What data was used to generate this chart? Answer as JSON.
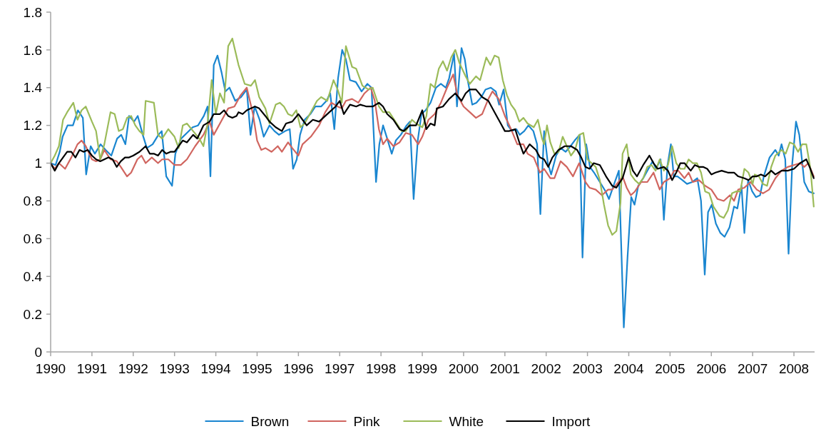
{
  "chart_data": {
    "type": "line",
    "xlim": [
      1990,
      2008.5
    ],
    "xticks": [
      1990,
      1991,
      1992,
      1993,
      1994,
      1995,
      1996,
      1997,
      1998,
      1999,
      2000,
      2001,
      2002,
      2003,
      2004,
      2005,
      2006,
      2007,
      2008
    ],
    "ylim": [
      0,
      1.8
    ],
    "yticks": [
      0,
      0.2,
      0.4,
      0.6,
      0.8,
      1,
      1.2,
      1.4,
      1.6,
      1.8
    ],
    "legend": "bottom",
    "series": [
      {
        "name": "Brown",
        "color": "#1a86d0",
        "x": [
          1990.0,
          1990.12,
          1990.22,
          1990.29,
          1990.41,
          1990.54,
          1990.66,
          1990.78,
          1990.86,
          1990.97,
          1991.07,
          1991.21,
          1991.33,
          1991.47,
          1991.61,
          1991.71,
          1991.81,
          1991.9,
          1992.02,
          1992.11,
          1992.23,
          1992.33,
          1992.47,
          1992.61,
          1992.69,
          1992.8,
          1992.94,
          1993.02,
          1993.16,
          1993.3,
          1993.44,
          1993.57,
          1993.71,
          1993.8,
          1993.87,
          1993.95,
          1994.04,
          1994.14,
          1994.23,
          1994.33,
          1994.47,
          1994.61,
          1994.75,
          1994.84,
          1994.94,
          1995.06,
          1995.16,
          1995.3,
          1995.42,
          1995.53,
          1995.68,
          1995.79,
          1995.87,
          1995.96,
          1996.04,
          1996.15,
          1996.29,
          1996.41,
          1996.55,
          1996.68,
          1996.77,
          1996.87,
          1996.96,
          1997.06,
          1997.15,
          1997.25,
          1997.39,
          1997.53,
          1997.67,
          1997.77,
          1997.88,
          1997.96,
          1998.05,
          1998.15,
          1998.26,
          1998.36,
          1998.48,
          1998.62,
          1998.7,
          1998.79,
          1998.89,
          1998.98,
          1999.08,
          1999.2,
          1999.33,
          1999.45,
          1999.57,
          1999.65,
          1999.77,
          1999.84,
          1999.95,
          2000.03,
          2000.1,
          2000.21,
          2000.31,
          2000.43,
          2000.53,
          2000.66,
          2000.78,
          2000.86,
          2000.97,
          2001.07,
          2001.17,
          2001.28,
          2001.36,
          2001.47,
          2001.57,
          2001.69,
          2001.78,
          2001.86,
          2001.95,
          2002.04,
          2002.12,
          2002.24,
          2002.35,
          2002.47,
          2002.59,
          2002.69,
          2002.81,
          2002.88,
          2002.97,
          2003.06,
          2003.16,
          2003.3,
          2003.44,
          2003.52,
          2003.63,
          2003.76,
          2003.88,
          2003.97,
          2004.06,
          2004.14,
          2004.23,
          2004.35,
          2004.45,
          2004.58,
          2004.66,
          2004.77,
          2004.85,
          2004.94,
          2005.02,
          2005.09,
          2005.18,
          2005.3,
          2005.41,
          2005.54,
          2005.66,
          2005.75,
          2005.84,
          2005.92,
          2006.01,
          2006.11,
          2006.22,
          2006.32,
          2006.44,
          2006.55,
          2006.63,
          2006.73,
          2006.8,
          2006.89,
          2006.99,
          2007.08,
          2007.18,
          2007.27,
          2007.41,
          2007.55,
          2007.63,
          2007.7,
          2007.79,
          2007.87,
          2007.96,
          2008.05,
          2008.13,
          2008.25,
          2008.36,
          2008.48
        ],
        "values": [
          1.0,
          0.99,
          1.06,
          1.14,
          1.2,
          1.2,
          1.28,
          1.24,
          0.94,
          1.09,
          1.05,
          1.1,
          1.07,
          1.04,
          1.13,
          1.15,
          1.1,
          1.25,
          1.22,
          1.25,
          1.15,
          1.08,
          1.1,
          1.15,
          1.17,
          0.93,
          0.88,
          1.05,
          1.13,
          1.16,
          1.19,
          1.2,
          1.25,
          1.3,
          0.93,
          1.52,
          1.57,
          1.48,
          1.38,
          1.4,
          1.33,
          1.35,
          1.39,
          1.15,
          1.3,
          1.23,
          1.14,
          1.2,
          1.17,
          1.15,
          1.17,
          1.18,
          0.97,
          1.02,
          1.15,
          1.23,
          1.26,
          1.3,
          1.3,
          1.33,
          1.37,
          1.18,
          1.45,
          1.6,
          1.55,
          1.44,
          1.43,
          1.38,
          1.42,
          1.4,
          0.9,
          1.1,
          1.2,
          1.13,
          1.05,
          1.12,
          1.15,
          1.2,
          1.22,
          0.81,
          1.12,
          1.26,
          1.28,
          1.32,
          1.4,
          1.42,
          1.4,
          1.45,
          1.58,
          1.3,
          1.61,
          1.55,
          1.44,
          1.31,
          1.32,
          1.35,
          1.39,
          1.4,
          1.38,
          1.31,
          1.39,
          1.2,
          1.17,
          1.18,
          1.15,
          1.17,
          1.2,
          1.17,
          1.1,
          0.73,
          1.17,
          1.0,
          0.94,
          1.04,
          1.08,
          1.06,
          1.09,
          1.12,
          1.15,
          0.5,
          1.1,
          0.98,
          0.95,
          0.9,
          0.85,
          0.81,
          0.88,
          0.96,
          0.13,
          0.5,
          0.82,
          0.78,
          0.88,
          0.92,
          0.96,
          1.01,
          0.97,
          1.02,
          0.7,
          0.99,
          1.1,
          0.93,
          0.93,
          0.91,
          0.89,
          0.9,
          0.92,
          0.8,
          0.41,
          0.74,
          0.78,
          0.68,
          0.63,
          0.61,
          0.66,
          0.77,
          0.76,
          0.88,
          0.63,
          0.91,
          0.85,
          0.82,
          0.83,
          0.93,
          1.03,
          1.07,
          1.04,
          1.1,
          1.02,
          0.52,
          1.0,
          1.22,
          1.15,
          0.9,
          0.85,
          0.84
        ]
      },
      {
        "name": "Pink",
        "color": "#d0655f",
        "x": [
          1990.0,
          1990.1,
          1990.2,
          1990.35,
          1990.5,
          1990.65,
          1990.75,
          1990.85,
          1991.0,
          1991.1,
          1991.2,
          1991.3,
          1991.45,
          1991.6,
          1991.7,
          1991.85,
          1991.95,
          1992.1,
          1992.2,
          1992.3,
          1992.45,
          1992.6,
          1992.7,
          1992.85,
          1993.0,
          1993.15,
          1993.3,
          1993.5,
          1993.7,
          1993.85,
          1993.95,
          1994.15,
          1994.3,
          1994.45,
          1994.6,
          1994.75,
          1994.9,
          1995.0,
          1995.1,
          1995.2,
          1995.35,
          1995.5,
          1995.6,
          1995.75,
          1995.85,
          1996.0,
          1996.1,
          1996.3,
          1996.5,
          1996.65,
          1996.8,
          1996.95,
          1997.05,
          1997.15,
          1997.3,
          1997.45,
          1997.6,
          1997.75,
          1997.85,
          1997.95,
          1998.05,
          1998.15,
          1998.3,
          1998.45,
          1998.6,
          1998.75,
          1998.9,
          1999.0,
          1999.15,
          1999.3,
          1999.45,
          1999.6,
          1999.75,
          1999.85,
          2000.0,
          2000.15,
          2000.3,
          2000.45,
          2000.6,
          2000.7,
          2000.85,
          2001.0,
          2001.15,
          2001.3,
          2001.45,
          2001.55,
          2001.7,
          2001.85,
          2001.95,
          2002.1,
          2002.2,
          2002.35,
          2002.5,
          2002.65,
          2002.8,
          2002.95,
          2003.05,
          2003.2,
          2003.35,
          2003.5,
          2003.6,
          2003.75,
          2003.85,
          2003.95,
          2004.05,
          2004.15,
          2004.3,
          2004.45,
          2004.6,
          2004.75,
          2004.85,
          2005.0,
          2005.1,
          2005.2,
          2005.35,
          2005.45,
          2005.55,
          2005.7,
          2005.85,
          2006.0,
          2006.15,
          2006.3,
          2006.45,
          2006.55,
          2006.65,
          2006.8,
          2006.95,
          2007.1,
          2007.25,
          2007.4,
          2007.55,
          2007.7,
          2007.85,
          2008.0,
          2008.15,
          2008.25,
          2008.35,
          2008.48
        ],
        "values": [
          1.0,
          0.97,
          1.0,
          0.97,
          1.03,
          1.1,
          1.12,
          1.09,
          1.02,
          1.01,
          1.02,
          1.07,
          1.02,
          1.01,
          0.98,
          0.93,
          0.95,
          1.02,
          1.04,
          1.0,
          1.03,
          1.0,
          1.02,
          1.02,
          0.99,
          0.99,
          1.02,
          1.09,
          1.15,
          1.22,
          1.15,
          1.23,
          1.29,
          1.3,
          1.36,
          1.4,
          1.26,
          1.12,
          1.07,
          1.08,
          1.06,
          1.09,
          1.06,
          1.11,
          1.08,
          1.04,
          1.1,
          1.14,
          1.2,
          1.27,
          1.32,
          1.3,
          1.29,
          1.33,
          1.34,
          1.32,
          1.37,
          1.4,
          1.33,
          1.18,
          1.1,
          1.13,
          1.09,
          1.11,
          1.16,
          1.15,
          1.1,
          1.14,
          1.23,
          1.26,
          1.32,
          1.4,
          1.47,
          1.36,
          1.3,
          1.27,
          1.24,
          1.26,
          1.34,
          1.38,
          1.34,
          1.25,
          1.18,
          1.1,
          1.1,
          1.05,
          1.03,
          0.95,
          0.97,
          0.92,
          0.92,
          1.01,
          0.98,
          0.93,
          1.0,
          0.9,
          0.87,
          0.86,
          0.83,
          0.86,
          0.86,
          0.9,
          0.93,
          0.87,
          0.83,
          0.85,
          0.9,
          0.9,
          0.95,
          0.86,
          0.9,
          0.92,
          0.96,
          0.96,
          0.92,
          0.95,
          0.9,
          0.91,
          0.88,
          0.86,
          0.81,
          0.8,
          0.83,
          0.8,
          0.86,
          0.87,
          0.9,
          0.86,
          0.84,
          0.86,
          0.92,
          0.96,
          0.98,
          0.99,
          1.0,
          0.98,
          1.0,
          0.93
        ]
      },
      {
        "name": "White",
        "color": "#9bbb59",
        "x": [
          1990.0,
          1990.1,
          1990.2,
          1990.3,
          1990.4,
          1990.55,
          1990.65,
          1990.75,
          1990.85,
          1991.0,
          1991.1,
          1991.2,
          1991.3,
          1991.45,
          1991.55,
          1991.65,
          1991.75,
          1991.85,
          1991.95,
          1992.05,
          1992.15,
          1992.25,
          1992.3,
          1992.5,
          1992.6,
          1992.7,
          1992.85,
          1993.0,
          1993.1,
          1993.2,
          1993.3,
          1993.45,
          1993.6,
          1993.7,
          1993.8,
          1993.9,
          1994.0,
          1994.1,
          1994.2,
          1994.3,
          1994.4,
          1994.55,
          1994.7,
          1994.85,
          1994.95,
          1995.05,
          1995.2,
          1995.3,
          1995.45,
          1995.55,
          1995.65,
          1995.75,
          1995.85,
          1995.95,
          1996.05,
          1996.15,
          1996.3,
          1996.45,
          1996.55,
          1996.7,
          1996.85,
          1996.95,
          1997.05,
          1997.15,
          1997.3,
          1997.4,
          1997.55,
          1997.7,
          1997.8,
          1997.95,
          1998.05,
          1998.2,
          1998.35,
          1998.5,
          1998.6,
          1998.75,
          1998.85,
          1999.0,
          1999.1,
          1999.2,
          1999.3,
          1999.4,
          1999.5,
          1999.6,
          1999.7,
          1999.8,
          1999.9,
          2000.05,
          2000.15,
          2000.3,
          2000.4,
          2000.55,
          2000.65,
          2000.75,
          2000.85,
          2000.95,
          2001.05,
          2001.15,
          2001.25,
          2001.35,
          2001.45,
          2001.55,
          2001.7,
          2001.8,
          2001.9,
          2001.95,
          2002.02,
          2002.1,
          2002.2,
          2002.3,
          2002.4,
          2002.5,
          2002.6,
          2002.7,
          2002.8,
          2002.9,
          2003.0,
          2003.1,
          2003.2,
          2003.3,
          2003.4,
          2003.5,
          2003.6,
          2003.7,
          2003.8,
          2003.85,
          2003.95,
          2004.05,
          2004.15,
          2004.25,
          2004.35,
          2004.45,
          2004.55,
          2004.65,
          2004.75,
          2004.85,
          2004.95,
          2005.05,
          2005.15,
          2005.25,
          2005.35,
          2005.45,
          2005.55,
          2005.65,
          2005.75,
          2005.85,
          2005.95,
          2006.05,
          2006.2,
          2006.3,
          2006.4,
          2006.5,
          2006.6,
          2006.7,
          2006.8,
          2006.9,
          2007.0,
          2007.05,
          2007.15,
          2007.25,
          2007.35,
          2007.45,
          2007.55,
          2007.7,
          2007.8,
          2007.9,
          2008.0,
          2008.1,
          2008.2,
          2008.3,
          2008.4,
          2008.48
        ],
        "values": [
          1.0,
          1.04,
          1.09,
          1.23,
          1.27,
          1.32,
          1.23,
          1.28,
          1.3,
          1.22,
          1.17,
          1.02,
          1.1,
          1.27,
          1.26,
          1.17,
          1.18,
          1.24,
          1.25,
          1.2,
          1.17,
          1.15,
          1.33,
          1.32,
          1.15,
          1.13,
          1.18,
          1.14,
          1.08,
          1.2,
          1.21,
          1.17,
          1.13,
          1.09,
          1.21,
          1.44,
          1.26,
          1.37,
          1.32,
          1.62,
          1.66,
          1.52,
          1.42,
          1.41,
          1.44,
          1.35,
          1.29,
          1.21,
          1.31,
          1.32,
          1.3,
          1.26,
          1.25,
          1.28,
          1.19,
          1.21,
          1.27,
          1.33,
          1.35,
          1.33,
          1.44,
          1.39,
          1.32,
          1.62,
          1.51,
          1.5,
          1.41,
          1.39,
          1.4,
          1.3,
          1.27,
          1.27,
          1.22,
          1.17,
          1.17,
          1.23,
          1.21,
          1.19,
          1.25,
          1.42,
          1.4,
          1.5,
          1.54,
          1.49,
          1.56,
          1.6,
          1.53,
          1.46,
          1.42,
          1.46,
          1.44,
          1.56,
          1.52,
          1.57,
          1.56,
          1.44,
          1.36,
          1.31,
          1.28,
          1.22,
          1.24,
          1.21,
          1.19,
          1.23,
          1.13,
          1.1,
          1.2,
          1.11,
          1.05,
          1.06,
          1.14,
          1.09,
          1.04,
          1.07,
          1.15,
          1.16,
          1.02,
          1.0,
          0.98,
          0.91,
          0.78,
          0.67,
          0.62,
          0.64,
          0.79,
          1.05,
          1.1,
          0.94,
          0.91,
          0.89,
          0.92,
          0.98,
          0.99,
          0.96,
          1.02,
          0.96,
          0.99,
          1.09,
          1.0,
          0.97,
          0.97,
          1.02,
          1.0,
          1.0,
          0.95,
          0.85,
          0.84,
          0.77,
          0.72,
          0.71,
          0.75,
          0.84,
          0.85,
          0.85,
          0.97,
          0.95,
          0.89,
          0.94,
          0.93,
          0.89,
          0.88,
          0.98,
          1.04,
          1.07,
          1.05,
          1.11,
          1.1,
          1.06,
          1.1,
          1.1,
          0.97,
          0.77
        ]
      },
      {
        "name": "Import",
        "color": "#000000",
        "x": [
          1990.0,
          1990.1,
          1990.2,
          1990.3,
          1990.4,
          1990.5,
          1990.6,
          1990.7,
          1990.8,
          1990.9,
          1991.0,
          1991.1,
          1991.2,
          1991.3,
          1991.4,
          1991.5,
          1991.6,
          1991.7,
          1991.8,
          1991.9,
          1992.0,
          1992.15,
          1992.3,
          1992.4,
          1992.5,
          1992.6,
          1992.7,
          1992.8,
          1992.9,
          1993.0,
          1993.1,
          1993.2,
          1993.3,
          1993.45,
          1993.55,
          1993.7,
          1993.85,
          1993.95,
          1994.1,
          1994.2,
          1994.3,
          1994.4,
          1994.5,
          1994.55,
          1994.65,
          1994.75,
          1994.85,
          1994.95,
          1995.05,
          1995.2,
          1995.3,
          1995.45,
          1995.6,
          1995.7,
          1995.85,
          1996.0,
          1996.1,
          1996.2,
          1996.35,
          1996.5,
          1996.6,
          1996.75,
          1996.9,
          1997.0,
          1997.1,
          1997.25,
          1997.4,
          1997.5,
          1997.65,
          1997.8,
          1997.95,
          1998.05,
          1998.15,
          1998.3,
          1998.45,
          1998.55,
          1998.7,
          1998.85,
          1999.0,
          1999.1,
          1999.2,
          1999.3,
          1999.35,
          1999.5,
          1999.65,
          1999.8,
          1999.95,
          2000.05,
          2000.15,
          2000.3,
          2000.45,
          2000.6,
          2000.75,
          2000.9,
          2001.0,
          2001.1,
          2001.25,
          2001.35,
          2001.45,
          2001.6,
          2001.75,
          2001.85,
          2001.95,
          2002.05,
          2002.15,
          2002.3,
          2002.45,
          2002.6,
          2002.75,
          2002.85,
          2002.95,
          2003.05,
          2003.15,
          2003.3,
          2003.45,
          2003.6,
          2003.7,
          2003.85,
          2004.0,
          2004.1,
          2004.2,
          2004.35,
          2004.5,
          2004.6,
          2004.7,
          2004.85,
          2004.95,
          2005.05,
          2005.15,
          2005.25,
          2005.35,
          2005.5,
          2005.6,
          2005.7,
          2005.8,
          2005.9,
          2006.0,
          2006.1,
          2006.25,
          2006.4,
          2006.55,
          2006.65,
          2006.8,
          2006.9,
          2007.0,
          2007.1,
          2007.2,
          2007.3,
          2007.45,
          2007.55,
          2007.7,
          2007.85,
          2008.0,
          2008.15,
          2008.3,
          2008.38,
          2008.48
        ],
        "values": [
          1.0,
          0.96,
          1.0,
          1.03,
          1.06,
          1.06,
          1.03,
          1.07,
          1.06,
          1.07,
          1.04,
          1.02,
          1.01,
          1.02,
          1.03,
          1.02,
          0.98,
          1.01,
          1.03,
          1.03,
          1.04,
          1.06,
          1.09,
          1.05,
          1.05,
          1.04,
          1.07,
          1.05,
          1.06,
          1.06,
          1.09,
          1.12,
          1.11,
          1.15,
          1.13,
          1.2,
          1.22,
          1.26,
          1.26,
          1.28,
          1.25,
          1.24,
          1.25,
          1.27,
          1.26,
          1.28,
          1.29,
          1.3,
          1.29,
          1.25,
          1.22,
          1.19,
          1.17,
          1.21,
          1.22,
          1.26,
          1.23,
          1.2,
          1.23,
          1.22,
          1.24,
          1.27,
          1.3,
          1.33,
          1.26,
          1.31,
          1.3,
          1.31,
          1.3,
          1.3,
          1.32,
          1.3,
          1.26,
          1.23,
          1.18,
          1.17,
          1.2,
          1.2,
          1.28,
          1.18,
          1.21,
          1.2,
          1.29,
          1.3,
          1.34,
          1.37,
          1.33,
          1.37,
          1.39,
          1.39,
          1.35,
          1.33,
          1.27,
          1.21,
          1.17,
          1.17,
          1.18,
          1.11,
          1.05,
          1.1,
          1.07,
          1.03,
          1.02,
          0.98,
          1.03,
          1.07,
          1.09,
          1.09,
          1.07,
          1.03,
          0.98,
          0.97,
          1.0,
          0.99,
          0.93,
          0.88,
          0.87,
          0.92,
          1.03,
          0.96,
          0.93,
          0.99,
          1.04,
          1.0,
          0.97,
          0.98,
          0.96,
          0.91,
          0.95,
          1.0,
          1.0,
          0.96,
          0.99,
          0.98,
          0.98,
          0.97,
          0.94,
          0.95,
          0.96,
          0.95,
          0.95,
          0.93,
          0.92,
          0.91,
          0.93,
          0.93,
          0.94,
          0.93,
          0.96,
          0.94,
          0.96,
          0.96,
          0.97,
          1.0,
          1.02,
          0.98,
          0.92
        ]
      }
    ]
  }
}
